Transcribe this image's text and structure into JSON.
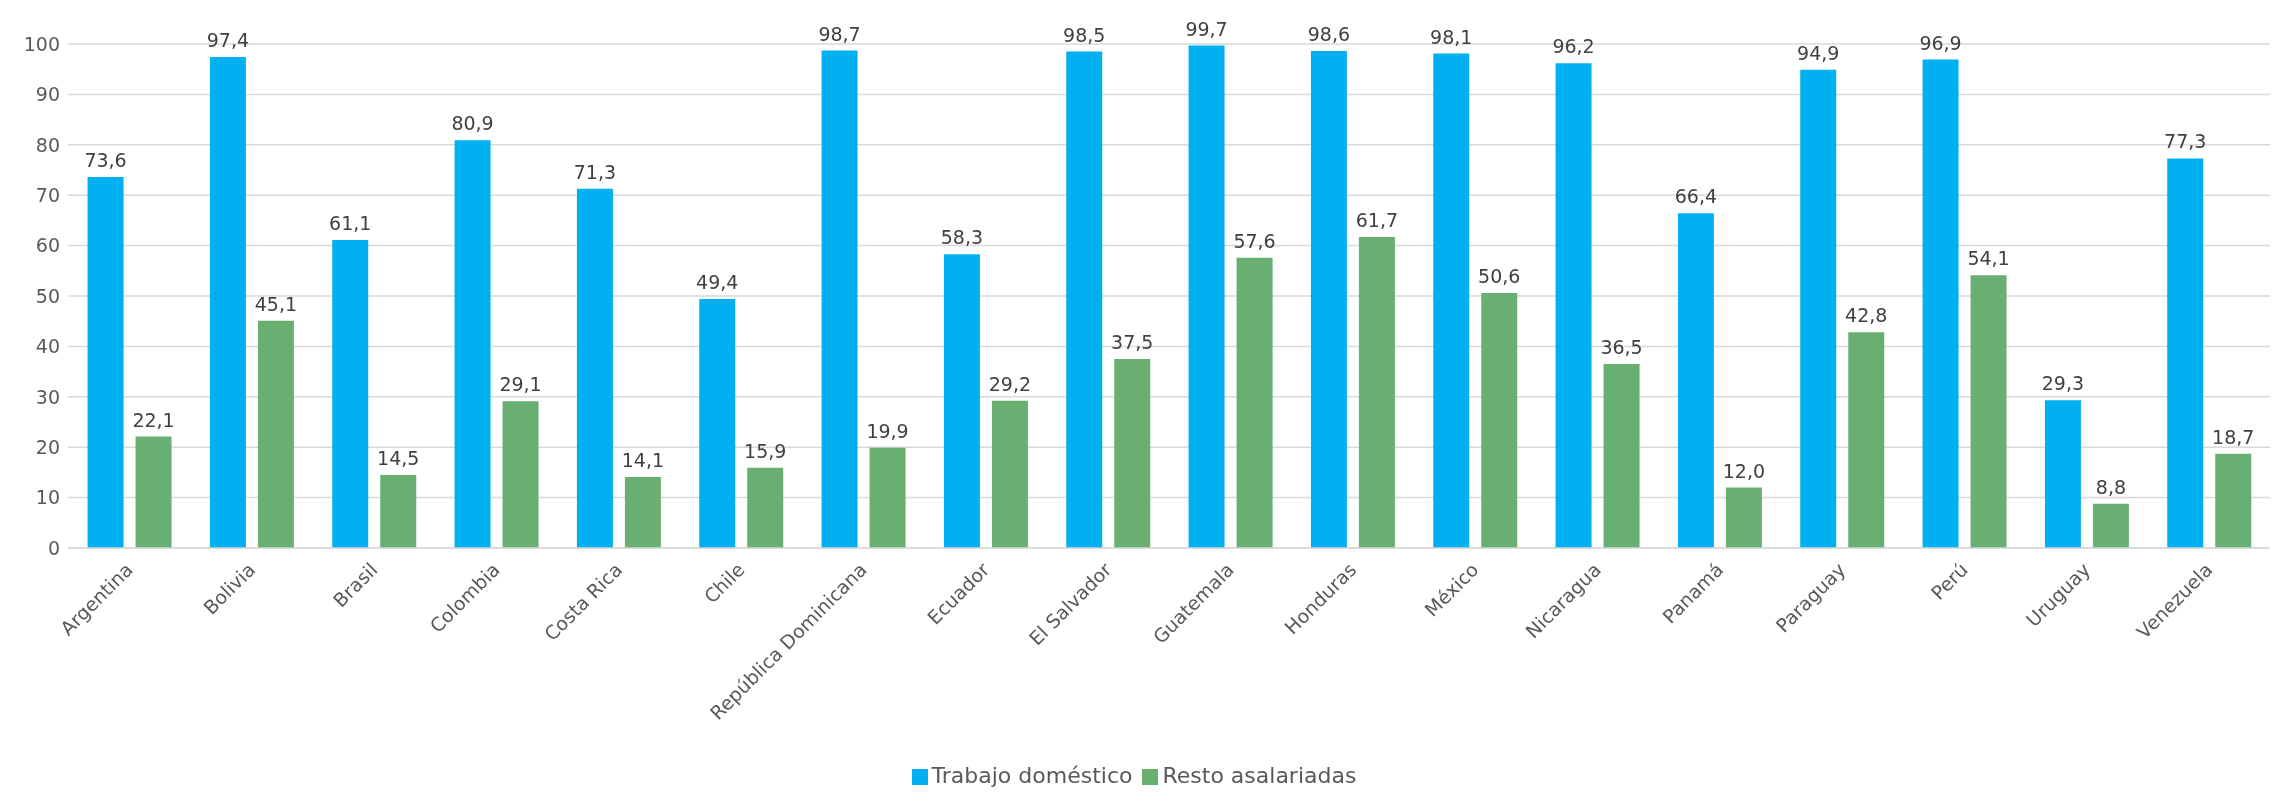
{
  "chart_data": {
    "type": "bar",
    "categories": [
      "Argentina",
      "Bolivia",
      "Brasil",
      "Colombia",
      "Costa Rica",
      "Chile",
      "República Dominicana",
      "Ecuador",
      "El Salvador",
      "Guatemala",
      "Honduras",
      "México",
      "Nicaragua",
      "Panamá",
      "Paraguay",
      "Perú",
      "Uruguay",
      "Venezuela"
    ],
    "series": [
      {
        "name": "Trabajo doméstico",
        "color": "#00b0f0",
        "values": [
          73.6,
          97.4,
          61.1,
          80.9,
          71.3,
          49.4,
          98.7,
          58.3,
          98.5,
          99.7,
          98.6,
          98.1,
          96.2,
          66.4,
          94.9,
          96.9,
          29.3,
          77.3
        ],
        "value_labels": [
          "73,6",
          "97,4",
          "61,1",
          "80,9",
          "71,3",
          "49,4",
          "98,7",
          "58,3",
          "98,5",
          "99,7",
          "98,6",
          "98,1",
          "96,2",
          "66,4",
          "94,9",
          "96,9",
          "29,3",
          "77,3"
        ]
      },
      {
        "name": "Resto asalariadas",
        "color": "#6aaf72",
        "values": [
          22.1,
          45.1,
          14.5,
          29.1,
          14.1,
          15.9,
          19.9,
          29.2,
          37.5,
          57.6,
          61.7,
          50.6,
          36.5,
          12.0,
          42.8,
          54.1,
          8.8,
          18.7
        ],
        "value_labels": [
          "22,1",
          "45,1",
          "14,5",
          "29,1",
          "14,1",
          "15,9",
          "19,9",
          "29,2",
          "37,5",
          "57,6",
          "61,7",
          "50,6",
          "36,5",
          "12,0",
          "42,8",
          "54,1",
          "8,8",
          "18,7"
        ]
      }
    ],
    "ylim": [
      0,
      100
    ],
    "yticks": [
      0,
      10,
      20,
      30,
      40,
      50,
      60,
      70,
      80,
      90,
      100
    ],
    "grid": "y",
    "legend": "bottom"
  }
}
